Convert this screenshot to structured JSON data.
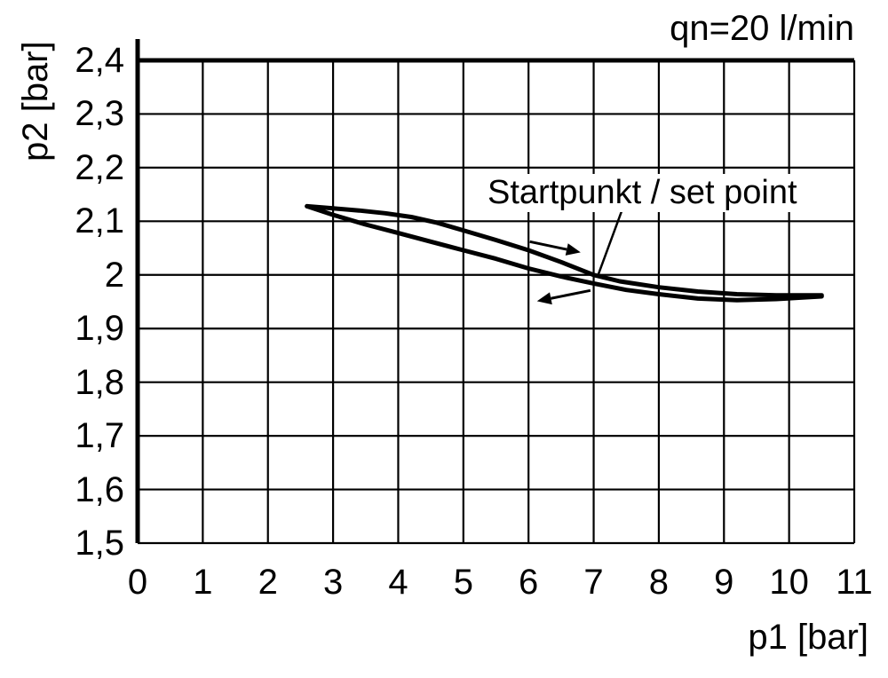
{
  "chart_data": {
    "type": "line",
    "title": "",
    "xlabel": "p1 [bar]",
    "ylabel": "p2 [bar]",
    "xlim": [
      0,
      11
    ],
    "ylim": [
      1.5,
      2.4
    ],
    "grid": true,
    "x_tick_values": [
      0,
      1,
      2,
      3,
      4,
      5,
      6,
      7,
      8,
      9,
      10,
      11
    ],
    "x_tick_labels": [
      "0",
      "1",
      "2",
      "3",
      "4",
      "5",
      "6",
      "7",
      "8",
      "9",
      "10",
      "11"
    ],
    "y_tick_values": [
      2.4,
      2.3,
      2.2,
      2.1,
      2.0,
      1.9,
      1.8,
      1.7,
      1.6,
      1.5
    ],
    "y_tick_labels": [
      "2,4",
      "2,3",
      "2,2",
      "2,1",
      "2",
      "1,9",
      "1,8",
      "1,7",
      "1,6",
      "1,5"
    ],
    "annotations": {
      "flow_rate": "qn=20 l/min",
      "set_point": "Startpunkt / set point"
    },
    "set_point_xy": [
      7.0,
      2.0
    ],
    "series": [
      {
        "name": "upper-branch",
        "x": [
          2.6,
          3.0,
          3.4,
          3.8,
          4.2,
          4.6,
          5.0,
          5.5,
          6.0,
          6.5,
          7.0,
          7.4,
          8.0,
          8.6,
          9.2,
          9.8,
          10.5
        ],
        "y": [
          2.128,
          2.124,
          2.12,
          2.115,
          2.108,
          2.097,
          2.083,
          2.065,
          2.046,
          2.024,
          2.0,
          1.988,
          1.977,
          1.969,
          1.964,
          1.962,
          1.962
        ]
      },
      {
        "name": "lower-branch",
        "x": [
          2.6,
          3.0,
          3.5,
          4.0,
          4.5,
          5.0,
          5.5,
          6.0,
          6.5,
          7.0,
          7.5,
          8.0,
          8.6,
          9.2,
          9.8,
          10.5
        ],
        "y": [
          2.128,
          2.112,
          2.094,
          2.078,
          2.062,
          2.046,
          2.03,
          2.012,
          1.997,
          1.984,
          1.972,
          1.964,
          1.956,
          1.953,
          1.955,
          1.96
        ]
      }
    ],
    "direction_arrows": [
      {
        "name": "increase-direction-arrow",
        "from": [
          6.02,
          2.062
        ],
        "to": [
          6.8,
          2.042
        ]
      },
      {
        "name": "return-direction-arrow",
        "from": [
          6.95,
          1.971
        ],
        "to": [
          6.13,
          1.951
        ]
      }
    ],
    "leader_line": {
      "from": [
        7.43,
        2.119
      ],
      "to": [
        7.06,
        1.997
      ]
    }
  }
}
